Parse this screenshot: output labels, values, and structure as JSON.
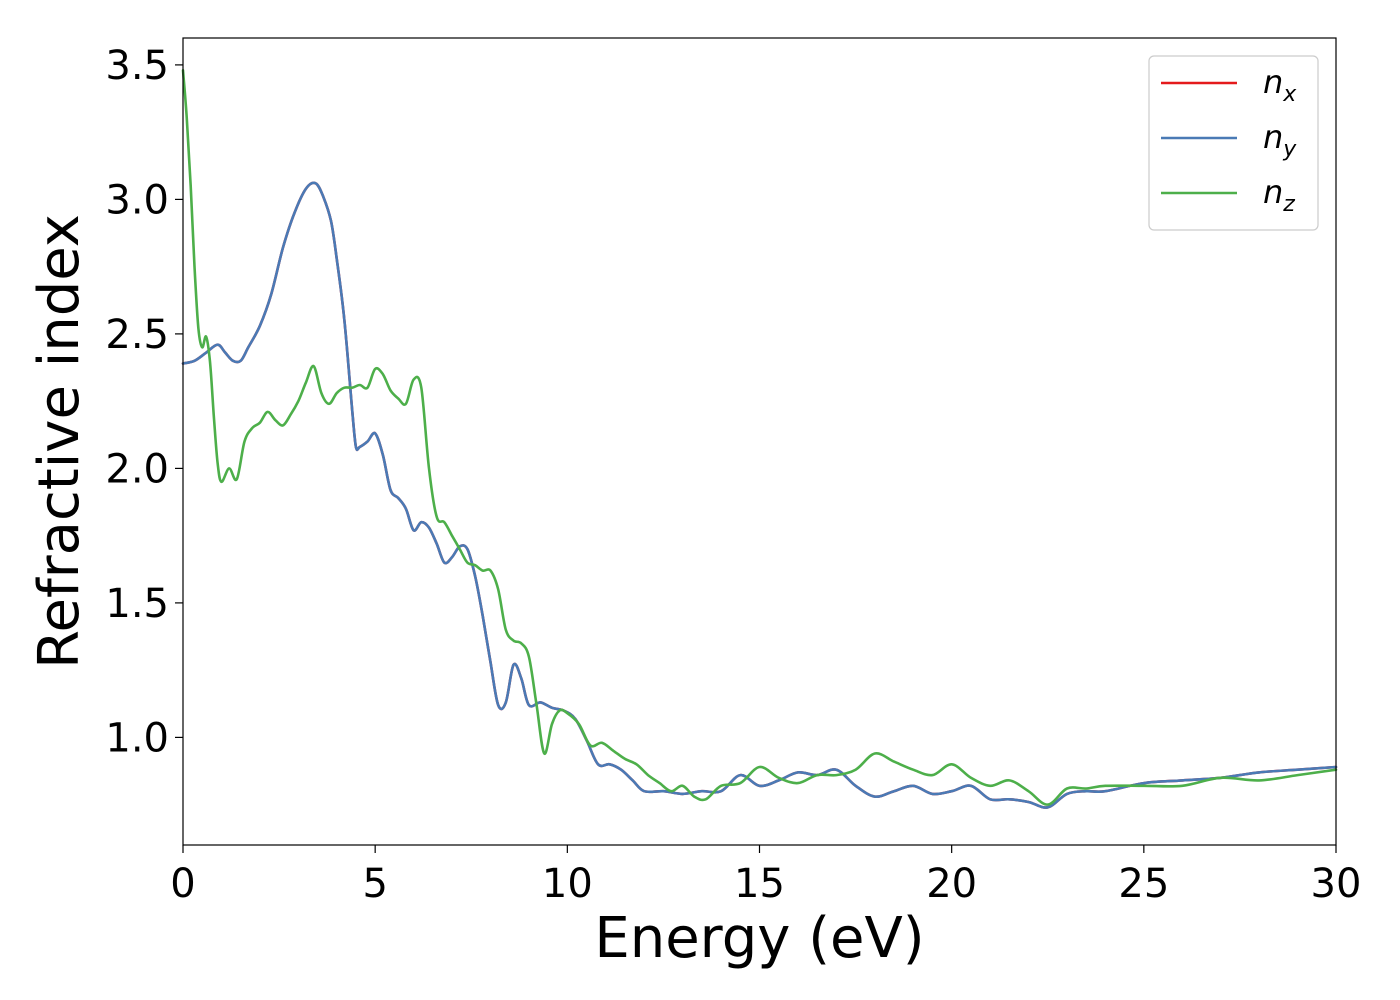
{
  "chart_data": {
    "type": "line",
    "xlabel": "Energy (eV)",
    "ylabel": "Refractive index",
    "xlim": [
      0,
      30
    ],
    "ylim": [
      0.6,
      3.6
    ],
    "xticks": [
      0,
      5,
      10,
      15,
      20,
      25,
      30
    ],
    "xtick_labels": [
      "0",
      "5",
      "10",
      "15",
      "20",
      "25",
      "30"
    ],
    "yticks": [
      1.0,
      1.5,
      2.0,
      2.5,
      3.0,
      3.5
    ],
    "ytick_labels": [
      "1.0",
      "1.5",
      "2.0",
      "2.5",
      "3.0",
      "3.5"
    ],
    "grid": false,
    "legend_position": "top-right",
    "series": [
      {
        "name": "n_x",
        "legend_base": "n",
        "legend_sub": "x",
        "color": "#e41a1c",
        "x": [
          0,
          0.3,
          0.6,
          0.9,
          1.1,
          1.3,
          1.5,
          1.7,
          2.0,
          2.3,
          2.6,
          2.9,
          3.2,
          3.45,
          3.65,
          3.85,
          4.0,
          4.2,
          4.4,
          4.5,
          4.6,
          4.8,
          5.0,
          5.2,
          5.4,
          5.6,
          5.8,
          6.0,
          6.2,
          6.4,
          6.6,
          6.8,
          7.0,
          7.2,
          7.4,
          7.6,
          7.8,
          8.0,
          8.2,
          8.4,
          8.6,
          8.8,
          9.0,
          9.3,
          9.6,
          9.9,
          10.2,
          10.5,
          10.8,
          11.1,
          11.4,
          11.7,
          12.0,
          12.5,
          13.0,
          13.5,
          14.0,
          14.5,
          15.0,
          15.5,
          16.0,
          16.5,
          17.0,
          17.5,
          18.0,
          18.5,
          19.0,
          19.5,
          20.0,
          20.5,
          21.0,
          21.5,
          22.0,
          22.5,
          23.0,
          23.5,
          24.0,
          25.0,
          26.0,
          27.0,
          28.0,
          29.0,
          30.0
        ],
        "y": [
          2.39,
          2.4,
          2.43,
          2.46,
          2.43,
          2.4,
          2.4,
          2.45,
          2.53,
          2.65,
          2.82,
          2.95,
          3.04,
          3.06,
          3.01,
          2.92,
          2.78,
          2.55,
          2.22,
          2.08,
          2.08,
          2.1,
          2.13,
          2.05,
          1.92,
          1.89,
          1.85,
          1.77,
          1.8,
          1.78,
          1.72,
          1.65,
          1.67,
          1.71,
          1.7,
          1.6,
          1.45,
          1.28,
          1.12,
          1.13,
          1.27,
          1.22,
          1.12,
          1.13,
          1.11,
          1.1,
          1.07,
          0.99,
          0.9,
          0.9,
          0.88,
          0.84,
          0.8,
          0.8,
          0.79,
          0.8,
          0.8,
          0.86,
          0.82,
          0.84,
          0.87,
          0.86,
          0.88,
          0.82,
          0.78,
          0.8,
          0.82,
          0.79,
          0.8,
          0.82,
          0.77,
          0.77,
          0.76,
          0.74,
          0.79,
          0.8,
          0.8,
          0.83,
          0.84,
          0.85,
          0.87,
          0.88,
          0.89
        ]
      },
      {
        "name": "n_y",
        "legend_base": "n",
        "legend_sub": "y",
        "color": "#4a7ab5",
        "x": [
          0,
          0.3,
          0.6,
          0.9,
          1.1,
          1.3,
          1.5,
          1.7,
          2.0,
          2.3,
          2.6,
          2.9,
          3.2,
          3.45,
          3.65,
          3.85,
          4.0,
          4.2,
          4.4,
          4.5,
          4.6,
          4.8,
          5.0,
          5.2,
          5.4,
          5.6,
          5.8,
          6.0,
          6.2,
          6.4,
          6.6,
          6.8,
          7.0,
          7.2,
          7.4,
          7.6,
          7.8,
          8.0,
          8.2,
          8.4,
          8.6,
          8.8,
          9.0,
          9.3,
          9.6,
          9.9,
          10.2,
          10.5,
          10.8,
          11.1,
          11.4,
          11.7,
          12.0,
          12.5,
          13.0,
          13.5,
          14.0,
          14.5,
          15.0,
          15.5,
          16.0,
          16.5,
          17.0,
          17.5,
          18.0,
          18.5,
          19.0,
          19.5,
          20.0,
          20.5,
          21.0,
          21.5,
          22.0,
          22.5,
          23.0,
          23.5,
          24.0,
          25.0,
          26.0,
          27.0,
          28.0,
          29.0,
          30.0
        ],
        "y": [
          2.39,
          2.4,
          2.43,
          2.46,
          2.43,
          2.4,
          2.4,
          2.45,
          2.53,
          2.65,
          2.82,
          2.95,
          3.04,
          3.06,
          3.01,
          2.92,
          2.78,
          2.55,
          2.22,
          2.08,
          2.08,
          2.1,
          2.13,
          2.05,
          1.92,
          1.89,
          1.85,
          1.77,
          1.8,
          1.78,
          1.72,
          1.65,
          1.67,
          1.71,
          1.7,
          1.6,
          1.45,
          1.28,
          1.12,
          1.13,
          1.27,
          1.22,
          1.12,
          1.13,
          1.11,
          1.1,
          1.07,
          0.99,
          0.9,
          0.9,
          0.88,
          0.84,
          0.8,
          0.8,
          0.79,
          0.8,
          0.8,
          0.86,
          0.82,
          0.84,
          0.87,
          0.86,
          0.88,
          0.82,
          0.78,
          0.8,
          0.82,
          0.79,
          0.8,
          0.82,
          0.77,
          0.77,
          0.76,
          0.74,
          0.79,
          0.8,
          0.8,
          0.83,
          0.84,
          0.85,
          0.87,
          0.88,
          0.89
        ]
      },
      {
        "name": "n_z",
        "legend_base": "n",
        "legend_sub": "z",
        "color": "#4daf4a",
        "x": [
          0,
          0.1,
          0.2,
          0.3,
          0.4,
          0.5,
          0.6,
          0.7,
          0.8,
          0.9,
          1.0,
          1.2,
          1.4,
          1.6,
          1.8,
          2.0,
          2.2,
          2.4,
          2.6,
          2.8,
          3.0,
          3.2,
          3.4,
          3.6,
          3.8,
          4.0,
          4.2,
          4.4,
          4.6,
          4.8,
          5.0,
          5.2,
          5.4,
          5.6,
          5.8,
          6.0,
          6.2,
          6.4,
          6.6,
          6.8,
          7.0,
          7.2,
          7.4,
          7.6,
          7.8,
          8.0,
          8.2,
          8.4,
          8.6,
          8.8,
          9.0,
          9.2,
          9.4,
          9.6,
          9.8,
          10.0,
          10.3,
          10.6,
          10.9,
          11.2,
          11.5,
          11.8,
          12.1,
          12.4,
          12.7,
          13.0,
          13.3,
          13.6,
          14.0,
          14.5,
          15.0,
          15.5,
          16.0,
          16.5,
          17.0,
          17.5,
          18.0,
          18.5,
          19.0,
          19.5,
          20.0,
          20.5,
          21.0,
          21.5,
          22.0,
          22.5,
          23.0,
          23.5,
          24.0,
          25.0,
          26.0,
          27.0,
          28.0,
          29.0,
          30.0
        ],
        "y": [
          3.48,
          3.3,
          3.05,
          2.75,
          2.52,
          2.45,
          2.49,
          2.4,
          2.2,
          2.02,
          1.95,
          2.0,
          1.96,
          2.1,
          2.15,
          2.17,
          2.21,
          2.18,
          2.16,
          2.2,
          2.25,
          2.32,
          2.38,
          2.28,
          2.24,
          2.28,
          2.3,
          2.3,
          2.31,
          2.3,
          2.37,
          2.35,
          2.29,
          2.26,
          2.24,
          2.33,
          2.3,
          2.0,
          1.82,
          1.8,
          1.75,
          1.7,
          1.65,
          1.64,
          1.62,
          1.62,
          1.55,
          1.4,
          1.36,
          1.35,
          1.3,
          1.12,
          0.94,
          1.05,
          1.1,
          1.09,
          1.05,
          0.97,
          0.98,
          0.95,
          0.92,
          0.9,
          0.86,
          0.83,
          0.8,
          0.82,
          0.78,
          0.77,
          0.82,
          0.83,
          0.89,
          0.85,
          0.83,
          0.86,
          0.86,
          0.88,
          0.94,
          0.91,
          0.88,
          0.86,
          0.9,
          0.85,
          0.82,
          0.84,
          0.8,
          0.75,
          0.81,
          0.81,
          0.82,
          0.82,
          0.82,
          0.85,
          0.84,
          0.86,
          0.88
        ]
      }
    ]
  }
}
